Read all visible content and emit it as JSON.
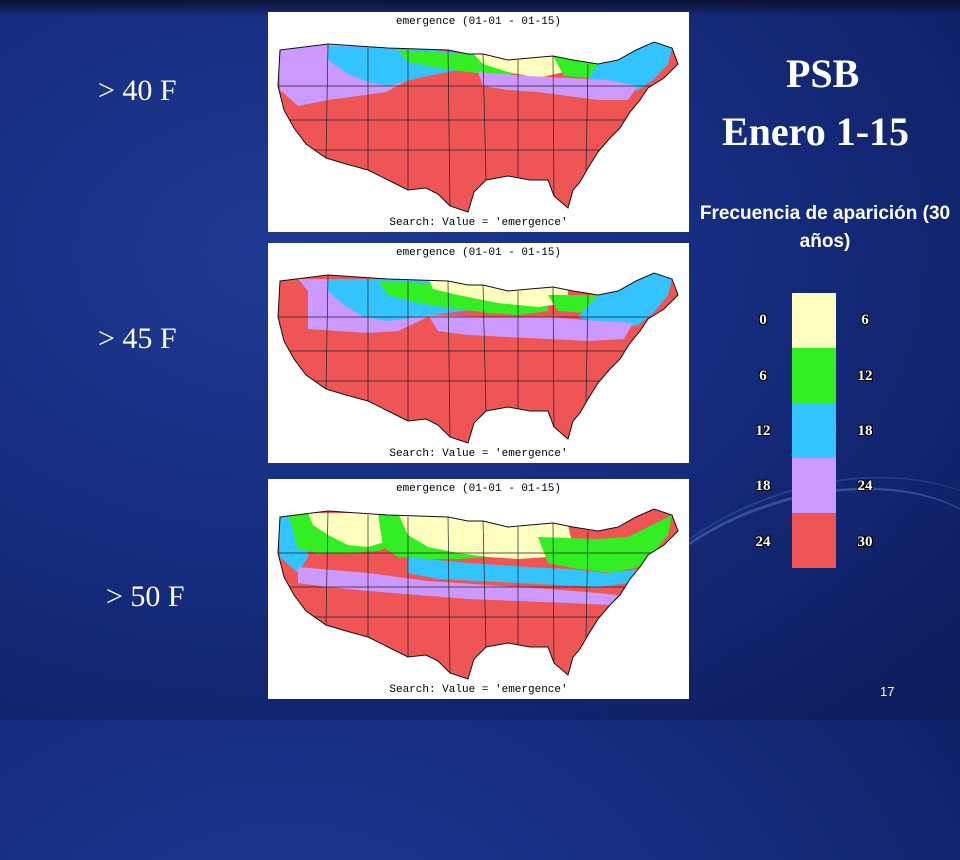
{
  "slide": {
    "title": "PSB",
    "subtitle": "Enero 1-15",
    "legend_title": "Frecuencia de aparición (30 años)",
    "page_number": "17"
  },
  "panels": [
    {
      "temp_label": "> 40 F",
      "title": "emergence (01-01 - 01-15)",
      "search": "Search: Value = 'emergence'"
    },
    {
      "temp_label": "> 45 F",
      "title": "emergence (01-01 - 01-15)",
      "search": "Search: Value = 'emergence'"
    },
    {
      "temp_label": "> 50 F",
      "title": "emergence (01-01 - 01-15)",
      "search": "Search: Value = 'emergence'"
    }
  ],
  "legend": [
    {
      "low": "0",
      "high": "6",
      "color": "#ffffc0"
    },
    {
      "low": "6",
      "high": "12",
      "color": "#33ee22"
    },
    {
      "low": "12",
      "high": "18",
      "color": "#33c4ff"
    },
    {
      "low": "18",
      "high": "24",
      "color": "#cc99ff"
    },
    {
      "low": "24",
      "high": "30",
      "color": "#f05555"
    }
  ]
}
